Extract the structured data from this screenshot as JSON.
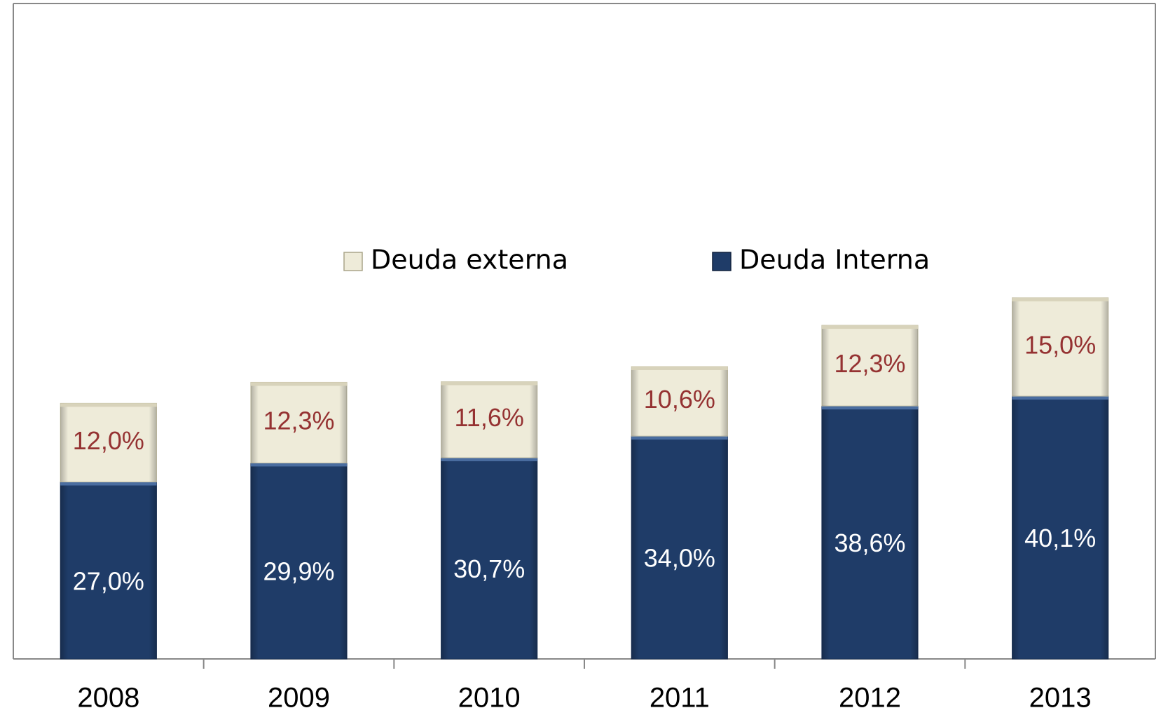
{
  "chart_data": {
    "type": "stacked_bar",
    "categories": [
      "2008",
      "2009",
      "2010",
      "2011",
      "2012",
      "2013"
    ],
    "series": [
      {
        "name": "Deuda Interna",
        "color": "#1f3c68",
        "label_color": "#ffffff",
        "values": [
          27.0,
          29.9,
          30.7,
          34.0,
          38.6,
          40.1
        ],
        "value_labels": [
          "27,0%",
          "29,9%",
          "30,7%",
          "34,0%",
          "38,6%",
          "40,1%"
        ]
      },
      {
        "name": "Deuda externa",
        "color": "#eeebd9",
        "label_color": "#953232",
        "values": [
          12.0,
          12.3,
          11.6,
          10.6,
          12.3,
          15.0
        ],
        "value_labels": [
          "12,0%",
          "12,3%",
          "11,6%",
          "10,6%",
          "12,3%",
          "15,0%"
        ]
      }
    ],
    "ylim": [
      0,
      100
    ],
    "grid": false
  }
}
